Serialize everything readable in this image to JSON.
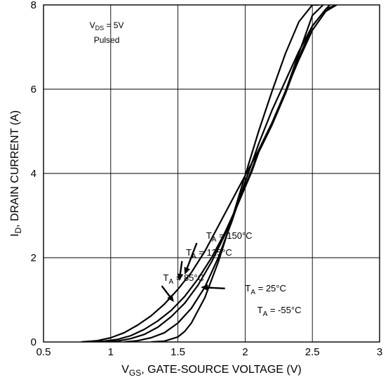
{
  "chart_data": {
    "type": "line",
    "xlim": [
      0.5,
      3
    ],
    "ylim": [
      0,
      8
    ],
    "xticks": [
      "0.5",
      "1",
      "1.5",
      "2",
      "2.5",
      "3"
    ],
    "yticks": [
      "0",
      "2",
      "4",
      "6",
      "8"
    ],
    "grid": true,
    "xlabel": {
      "main": "V",
      "sub": "GS",
      "rest": ", GATE-SOURCE VOLTAGE (V)"
    },
    "ylabel": {
      "main": "I",
      "sub": "D",
      "rest": ", DRAIN CURRENT (A)"
    },
    "conditions": {
      "line1": {
        "main": "V",
        "sub": "DS",
        "rest": " = 5V"
      },
      "line2": "Pulsed"
    },
    "series": [
      {
        "name": "T_A = 150°C",
        "x": [
          0.78,
          0.9,
          1.0,
          1.1,
          1.2,
          1.3,
          1.4,
          1.5,
          1.6,
          1.7,
          1.8,
          1.9,
          2.0,
          2.05,
          2.1,
          2.2,
          2.3,
          2.4,
          2.5,
          2.58
        ],
        "y": [
          0.0,
          0.03,
          0.1,
          0.22,
          0.4,
          0.62,
          0.9,
          1.25,
          1.65,
          2.15,
          2.75,
          3.35,
          3.95,
          4.25,
          4.55,
          5.2,
          5.95,
          6.85,
          7.75,
          8.0
        ]
      },
      {
        "name": "T_A = 125°C",
        "x": [
          0.85,
          0.95,
          1.05,
          1.15,
          1.25,
          1.35,
          1.45,
          1.55,
          1.65,
          1.75,
          1.85,
          1.95,
          2.05,
          2.1,
          2.2,
          2.3,
          2.4,
          2.5,
          2.6,
          2.63
        ],
        "y": [
          0.0,
          0.02,
          0.06,
          0.15,
          0.3,
          0.5,
          0.75,
          1.08,
          1.5,
          2.0,
          2.6,
          3.3,
          4.05,
          4.5,
          5.15,
          5.9,
          6.75,
          7.5,
          7.9,
          8.0
        ]
      },
      {
        "name": "T_A = 85°C",
        "x": [
          0.95,
          1.05,
          1.15,
          1.25,
          1.35,
          1.45,
          1.55,
          1.65,
          1.75,
          1.85,
          1.95,
          2.05,
          2.1,
          2.2,
          2.3,
          2.4,
          2.5,
          2.6,
          2.68
        ],
        "y": [
          0.0,
          0.02,
          0.08,
          0.18,
          0.35,
          0.6,
          0.92,
          1.35,
          1.9,
          2.55,
          3.3,
          4.1,
          4.55,
          5.2,
          5.95,
          6.7,
          7.4,
          7.85,
          8.0
        ]
      },
      {
        "name": "T_A = 25°C",
        "x": [
          1.1,
          1.2,
          1.3,
          1.4,
          1.5,
          1.6,
          1.7,
          1.8,
          1.9,
          2.0,
          2.1,
          2.2,
          2.3,
          2.4,
          2.5,
          2.6,
          2.68
        ],
        "y": [
          0.0,
          0.03,
          0.1,
          0.22,
          0.45,
          0.8,
          1.3,
          2.0,
          2.85,
          3.8,
          4.7,
          5.5,
          6.2,
          6.9,
          7.5,
          7.9,
          8.0
        ]
      },
      {
        "name": "T_A = -55°C",
        "x": [
          1.3,
          1.4,
          1.5,
          1.55,
          1.6,
          1.7,
          1.8,
          1.9,
          2.0,
          2.1,
          2.2,
          2.3,
          2.4,
          2.5,
          2.55
        ],
        "y": [
          0.0,
          0.02,
          0.12,
          0.25,
          0.45,
          1.05,
          1.9,
          2.9,
          3.95,
          5.0,
          5.95,
          6.85,
          7.6,
          8.0,
          8.0
        ]
      }
    ],
    "labels": [
      {
        "main": "T",
        "sub": "A",
        "rest": " = 150°C",
        "text_at": [
          1.71,
          2.45
        ],
        "arrow_from": [
          1.64,
          2.35
        ],
        "arrow_to": [
          1.55,
          1.6
        ]
      },
      {
        "main": "T",
        "sub": "A",
        "rest": " = 125°C",
        "text_at": [
          1.56,
          2.05
        ],
        "arrow_from": [
          1.53,
          1.92
        ],
        "arrow_to": [
          1.51,
          1.45
        ]
      },
      {
        "main": "T",
        "sub": "A",
        "rest": " = 85°C",
        "text_at": [
          1.39,
          1.45
        ],
        "arrow_from": [
          1.38,
          1.33
        ],
        "arrow_to": [
          1.47,
          0.95
        ]
      },
      {
        "main": "T",
        "sub": "A",
        "rest": " = 25°C",
        "text_at": [
          2.0,
          1.2
        ],
        "arrow_from": [
          1.85,
          1.27
        ],
        "arrow_to": [
          1.67,
          1.3
        ]
      },
      {
        "main": "T",
        "sub": "A",
        "rest": " = -55°C",
        "text_at": [
          2.09,
          0.68
        ]
      }
    ]
  }
}
